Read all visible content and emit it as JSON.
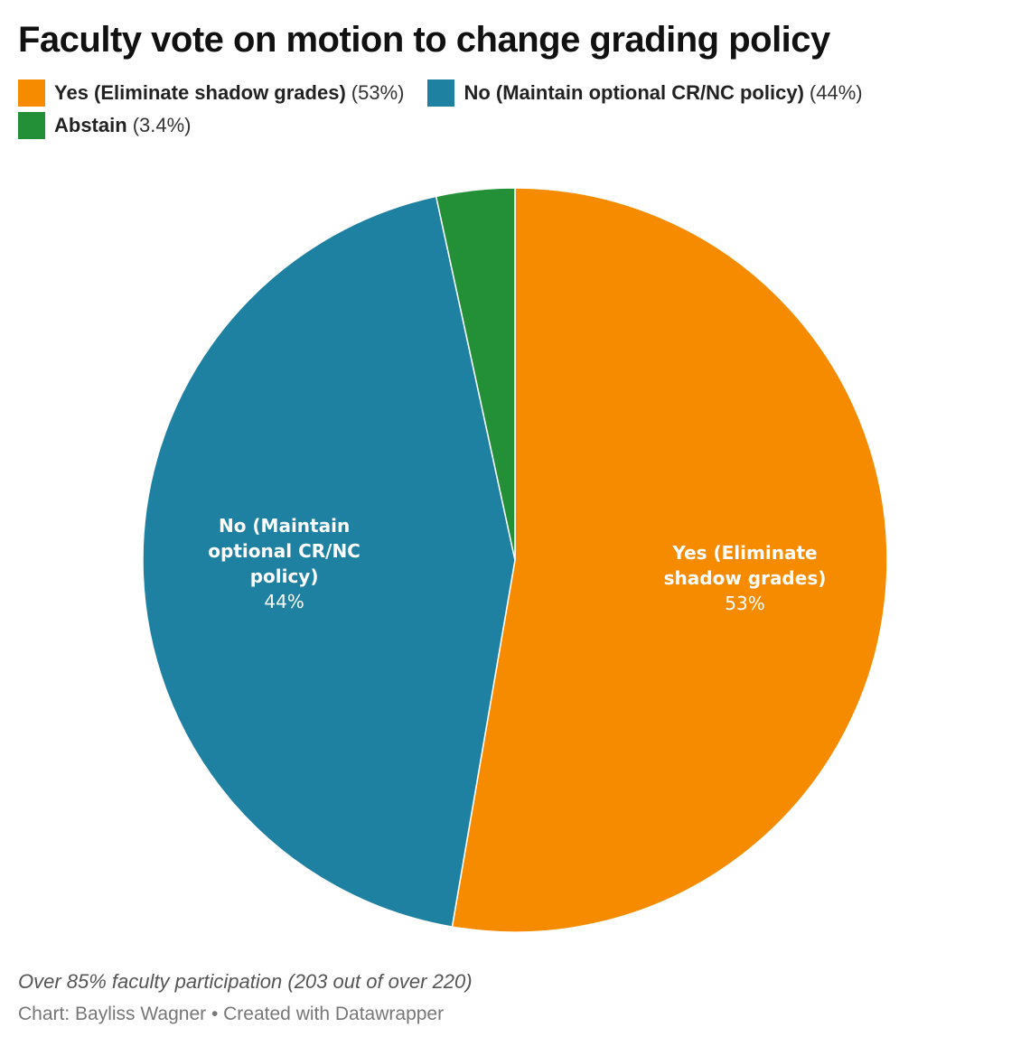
{
  "chart_data": {
    "type": "pie",
    "title": "Faculty vote on motion to change grading policy",
    "slices": [
      {
        "legend_name": "Yes (Eliminate shadow grades)",
        "legend_pct": "(53%)",
        "label_lines": [
          "Yes (Eliminate",
          "shadow grades)"
        ],
        "pct_label": "53%",
        "value": 52.7,
        "color": "#f68b00"
      },
      {
        "legend_name": "No (Maintain optional CR/NC policy)",
        "legend_pct": "(44%)",
        "label_lines": [
          "No (Maintain",
          "optional CR/NC",
          "policy)"
        ],
        "pct_label": "44%",
        "value": 43.9,
        "color": "#1e81a1"
      },
      {
        "legend_name": "Abstain",
        "legend_pct": "(3.4%)",
        "label_lines": [],
        "pct_label": "",
        "value": 3.4,
        "color": "#239037"
      }
    ],
    "legend_position": "top-left",
    "start_angle": "12 o'clock, clockwise"
  },
  "notes": "Over 85% faculty participation (203 out of over 220)",
  "byline": "Chart: Bayliss Wagner • Created with Datawrapper"
}
